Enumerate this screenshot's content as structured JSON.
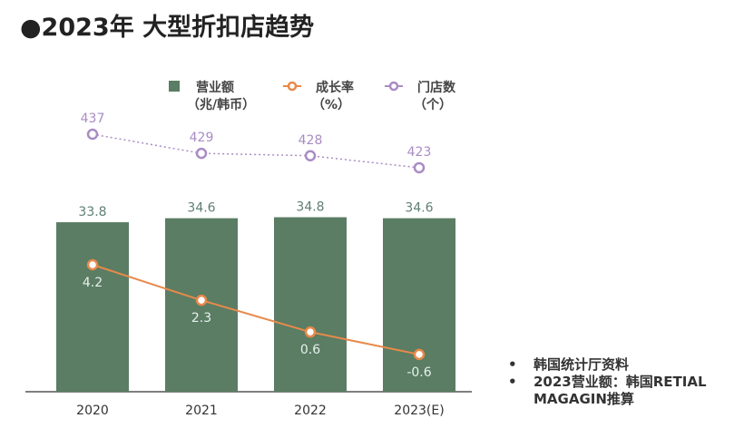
{
  "title": "●2023年 大型折扣店趋势",
  "chart_data": {
    "type": "bar+line",
    "categories": [
      "2020",
      "2021",
      "2022",
      "2023(E)"
    ],
    "series": [
      {
        "name": "营业额（兆/韩币）",
        "type": "bar",
        "values": [
          33.8,
          34.6,
          34.8,
          34.6
        ],
        "color": "#5a7d63"
      },
      {
        "name": "成长率（%）",
        "type": "line",
        "values": [
          4.2,
          2.3,
          0.6,
          -0.6
        ],
        "color": "#e8894a"
      },
      {
        "name": "门店数（个）",
        "type": "line-dotted",
        "values": [
          437,
          429,
          428,
          423
        ],
        "color": "#a98cc4"
      }
    ],
    "legend": [
      {
        "label": "营业额",
        "unit": "（兆/韩币）"
      },
      {
        "label": "成长率",
        "unit": "（%）"
      },
      {
        "label": "门店数",
        "unit": "（个）"
      }
    ],
    "legend_placement": "top",
    "grid": false
  },
  "notes": [
    "韩国统计厅资料",
    "2023营业额：韩国RETIAL MAGAGIN推算"
  ]
}
